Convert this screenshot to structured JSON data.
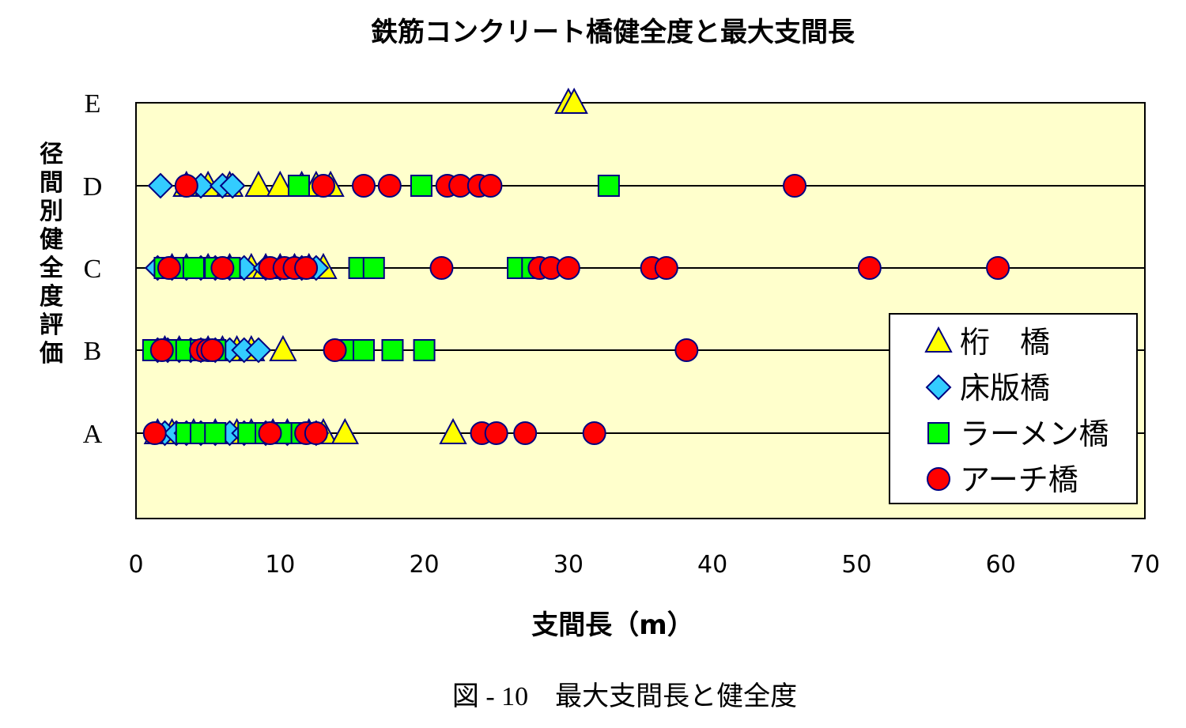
{
  "chart_data": {
    "type": "scatter",
    "title": "鉄筋コンクリート橋健全度と最大支間長",
    "xlabel": "支間長（m）",
    "ylabel": "径間別健全度評価",
    "caption": "図 - 10　最大支間長と健全度",
    "xlim": [
      0,
      70
    ],
    "x_ticks": [
      "0",
      "10",
      "20",
      "30",
      "40",
      "50",
      "60",
      "70"
    ],
    "categories": [
      "A",
      "B",
      "C",
      "D",
      "E"
    ],
    "grid": "horizontal at category levels B, C, D",
    "legend_position": "right",
    "series": [
      {
        "name": "桁　橋",
        "marker": "triangle",
        "color": "#ffff00",
        "points": {
          "A": [
            1.5,
            2.5,
            4,
            5.5,
            7,
            8,
            9.5,
            10.5,
            12,
            13,
            14.5,
            22
          ],
          "B": [
            2,
            3,
            5,
            6,
            7,
            8,
            10.2
          ],
          "C": [
            2.5,
            3.5,
            5,
            6.5,
            8,
            9,
            10,
            11,
            12,
            13
          ],
          "D": [
            3.5,
            5,
            6.5,
            8.5,
            10,
            11.5,
            12.5,
            13.5
          ],
          "E": [
            30,
            30.4
          ]
        }
      },
      {
        "name": "床版橋",
        "marker": "diamond",
        "color": "#33ccff",
        "points": {
          "A": [
            2,
            2.8,
            3.5,
            4.5,
            5.5,
            6.5,
            7.5,
            9,
            10.5,
            12.5
          ],
          "B": [
            1.5,
            2.2,
            3,
            3.8,
            4.5,
            5.5,
            6.5,
            7.5,
            8.5
          ],
          "C": [
            1.5,
            2.5,
            3.5,
            4.5,
            5.5,
            6.5,
            7.5,
            9,
            10,
            11.5,
            12.5
          ],
          "D": [
            1.7,
            4.5,
            6,
            6.7
          ]
        }
      },
      {
        "name": "ラーメン橋",
        "marker": "square",
        "color": "#00ff00",
        "points": {
          "A": [
            3.5,
            4.5,
            5.5,
            7.8,
            9,
            10.5,
            11.5
          ],
          "B": [
            1.2,
            2.5,
            3.5,
            4.5,
            5.5,
            14.5,
            15.8,
            17.8,
            20
          ],
          "C": [
            2,
            3,
            4,
            5.5,
            6.5,
            15.5,
            16.5,
            26.5,
            27.5
          ],
          "D": [
            11.3,
            19.8,
            32.8
          ]
        }
      },
      {
        "name": "アーチ橋",
        "marker": "circle",
        "color": "#ff0000",
        "points": {
          "A": [
            1.3,
            9.3,
            11.8,
            12.5,
            24,
            25,
            27,
            31.8
          ],
          "B": [
            1.8,
            4.5,
            5,
            5.3,
            13.8,
            38.2
          ],
          "C": [
            2.3,
            6,
            9.3,
            10.3,
            11,
            11.8,
            21.2,
            28,
            28.8,
            30,
            35.8,
            36.8,
            50.9,
            59.8
          ],
          "D": [
            3.5,
            13,
            15.8,
            17.6,
            21.6,
            22.5,
            23.8,
            24.6,
            45.7
          ]
        }
      }
    ]
  }
}
